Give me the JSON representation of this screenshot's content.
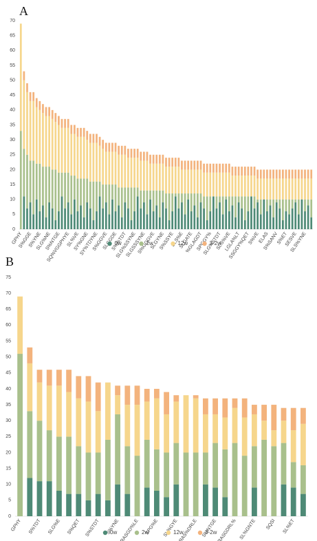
{
  "chart_data": [
    {
      "type": "stacked_bar",
      "title": "A",
      "legend": "bottom",
      "categories": [
        "GPHY",
        null,
        null,
        "S%GGE",
        null,
        null,
        "S%YNE",
        null,
        null,
        "SLG%NE",
        null,
        null,
        "S%NTGE",
        null,
        null,
        "SQ%VGGPHYE",
        null,
        null,
        "SL%VE",
        null,
        null,
        "SY%GNE",
        null,
        null,
        "SY%TDYNE",
        null,
        null,
        "S%GGVE",
        null,
        null,
        "SLGGDE",
        null,
        null,
        "S%%TDT",
        null,
        null,
        "SLG%SSYNE",
        null,
        null,
        "SLGSSSYNE",
        null,
        null,
        "S%GGGVE",
        null,
        null,
        "SLGYNE",
        null,
        null,
        "S%SSYE",
        null,
        null,
        "SLS%E",
        null,
        null,
        "SLGATE",
        null,
        null,
        "%GLAGDT",
        null,
        null,
        "SPGGY%",
        null,
        null,
        "SLG%STDT",
        null,
        null,
        "SLG%VE",
        null,
        null,
        "LGLA%LT",
        null,
        null,
        "SSGGY%QET",
        null,
        null,
        "S%VE",
        null,
        null,
        "ELAS",
        null,
        null,
        "S%SANV",
        null,
        null,
        "S%ET",
        null,
        null,
        "SESVE",
        null,
        null,
        "SLS%YNE",
        null,
        null
      ],
      "series": [
        {
          "name": "0w",
          "color": "#4e8a76",
          "values": [
            0,
            11,
            7,
            9,
            5,
            10,
            6,
            8,
            4,
            9,
            7,
            3,
            6,
            11,
            7,
            9,
            5,
            10,
            6,
            8,
            4,
            9,
            7,
            3,
            6,
            11,
            7,
            9,
            5,
            10,
            6,
            8,
            4,
            9,
            7,
            3,
            6,
            11,
            7,
            9,
            5,
            10,
            6,
            8,
            4,
            9,
            7,
            3,
            6,
            11,
            7,
            9,
            5,
            10,
            6,
            8,
            4,
            9,
            7,
            3,
            6,
            11,
            7,
            9,
            5,
            10,
            6,
            8,
            4,
            9,
            7,
            3,
            6,
            11,
            7,
            9,
            5,
            10,
            6,
            8,
            4,
            9,
            7,
            3,
            6,
            5,
            7,
            9,
            5,
            10,
            6,
            8,
            4
          ]
        },
        {
          "name": "2w",
          "color": "#a9c08c",
          "values": [
            33,
            16,
            18,
            14,
            18,
            12,
            16,
            13,
            17,
            12,
            13,
            17,
            13,
            8,
            12,
            10,
            13,
            8,
            11,
            9,
            13,
            8,
            9,
            13,
            10,
            5,
            8,
            6,
            10,
            5,
            9,
            6,
            10,
            5,
            7,
            11,
            8,
            3,
            6,
            4,
            8,
            3,
            7,
            5,
            9,
            4,
            5,
            9,
            6,
            1,
            5,
            3,
            7,
            2,
            6,
            4,
            8,
            3,
            4,
            8,
            5,
            0,
            4,
            2,
            6,
            1,
            5,
            3,
            7,
            2,
            4,
            8,
            5,
            0,
            4,
            1,
            5,
            0,
            4,
            2,
            6,
            1,
            3,
            7,
            4,
            5,
            3,
            1,
            5,
            0,
            4,
            2,
            6
          ]
        },
        {
          "name": "12w",
          "color": "#f6d68c",
          "values": [
            36,
            23,
            21,
            20,
            20,
            19,
            18,
            18,
            17,
            17,
            17,
            16,
            16,
            15,
            15,
            15,
            14,
            14,
            14,
            14,
            14,
            13,
            13,
            13,
            13,
            12,
            12,
            11,
            11,
            11,
            11,
            11,
            11,
            11,
            10,
            10,
            10,
            10,
            10,
            10,
            10,
            9,
            9,
            9,
            9,
            9,
            9,
            9,
            9,
            9,
            9,
            8,
            8,
            8,
            8,
            8,
            8,
            8,
            8,
            8,
            8,
            8,
            8,
            8,
            8,
            8,
            8,
            7,
            7,
            7,
            7,
            7,
            7,
            7,
            7,
            7,
            7,
            7,
            7,
            7,
            7,
            7,
            7,
            7,
            7,
            7,
            7,
            7,
            7,
            7,
            7,
            7,
            7
          ]
        },
        {
          "name": "3-2w",
          "color": "#f3b37d",
          "values": [
            0,
            3,
            3,
            3,
            3,
            3,
            3,
            3,
            3,
            3,
            3,
            3,
            3,
            3,
            3,
            3,
            3,
            3,
            3,
            3,
            3,
            3,
            3,
            3,
            3,
            3,
            3,
            3,
            3,
            3,
            3,
            3,
            3,
            3,
            3,
            3,
            3,
            3,
            3,
            3,
            3,
            3,
            3,
            3,
            3,
            3,
            3,
            3,
            3,
            3,
            3,
            3,
            3,
            3,
            3,
            3,
            3,
            3,
            3,
            3,
            3,
            3,
            3,
            3,
            3,
            3,
            3,
            3,
            3,
            3,
            3,
            3,
            3,
            3,
            3,
            3,
            3,
            3,
            3,
            3,
            3,
            3,
            3,
            3,
            3,
            3,
            3,
            3,
            3,
            3,
            3,
            3,
            3
          ]
        }
      ],
      "ylim": [
        0,
        70
      ],
      "yticks": [
        0,
        5,
        10,
        15,
        20,
        25,
        30,
        35,
        40,
        45,
        50,
        55,
        60,
        65,
        70
      ],
      "grid": false
    },
    {
      "type": "stacked_bar",
      "title": "B",
      "legend": "bottom",
      "categories": [
        "GPHY",
        null,
        "S%TDT",
        null,
        "SLG%E",
        null,
        "S%QET",
        null,
        "S%STDT",
        null,
        "S%YNE",
        null,
        "SRASGD%LE",
        null,
        "SPG%E",
        null,
        "SL%GYE",
        null,
        "SRAS%DRLE",
        null,
        "S%NTGE",
        null,
        "SRASGDRL%",
        null,
        "SL%GNTE",
        null,
        "SQSI",
        null,
        "SL%ET",
        null
      ],
      "series": [
        {
          "name": "0w",
          "color": "#4e8a76",
          "values": [
            0,
            12,
            11,
            11,
            8,
            7,
            7,
            5,
            7,
            5,
            10,
            7,
            0,
            9,
            8,
            6,
            10,
            0,
            0,
            10,
            9,
            6,
            0,
            0,
            9,
            0,
            0,
            10,
            9,
            7
          ]
        },
        {
          "name": "2w",
          "color": "#a9c08c",
          "values": [
            51,
            21,
            19,
            16,
            17,
            18,
            15,
            15,
            13,
            19,
            22,
            15,
            19,
            15,
            13,
            14,
            13,
            20,
            20,
            10,
            14,
            15,
            23,
            19,
            13,
            24,
            22,
            13,
            8,
            9
          ]
        },
        {
          "name": "12w",
          "color": "#f6d68c",
          "values": [
            18,
            15,
            12,
            14,
            16,
            14,
            15,
            16,
            13,
            18,
            6,
            13,
            16,
            12,
            16,
            12,
            13,
            18,
            17,
            12,
            9,
            10,
            11,
            12,
            10,
            6,
            5,
            7,
            10,
            13
          ]
        },
        {
          "name": "3-2w",
          "color": "#f3b37d",
          "values": [
            0,
            5,
            4,
            5,
            5,
            7,
            7,
            8,
            9,
            0,
            3,
            6,
            6,
            4,
            3,
            7,
            2,
            0,
            1,
            5,
            5,
            6,
            3,
            6,
            3,
            5,
            8,
            4,
            7,
            5
          ]
        }
      ],
      "ylim": [
        0,
        75
      ],
      "yticks": [
        0,
        5,
        10,
        15,
        20,
        25,
        30,
        35,
        40,
        45,
        50,
        55,
        60,
        65,
        70,
        75
      ],
      "grid": false
    }
  ]
}
